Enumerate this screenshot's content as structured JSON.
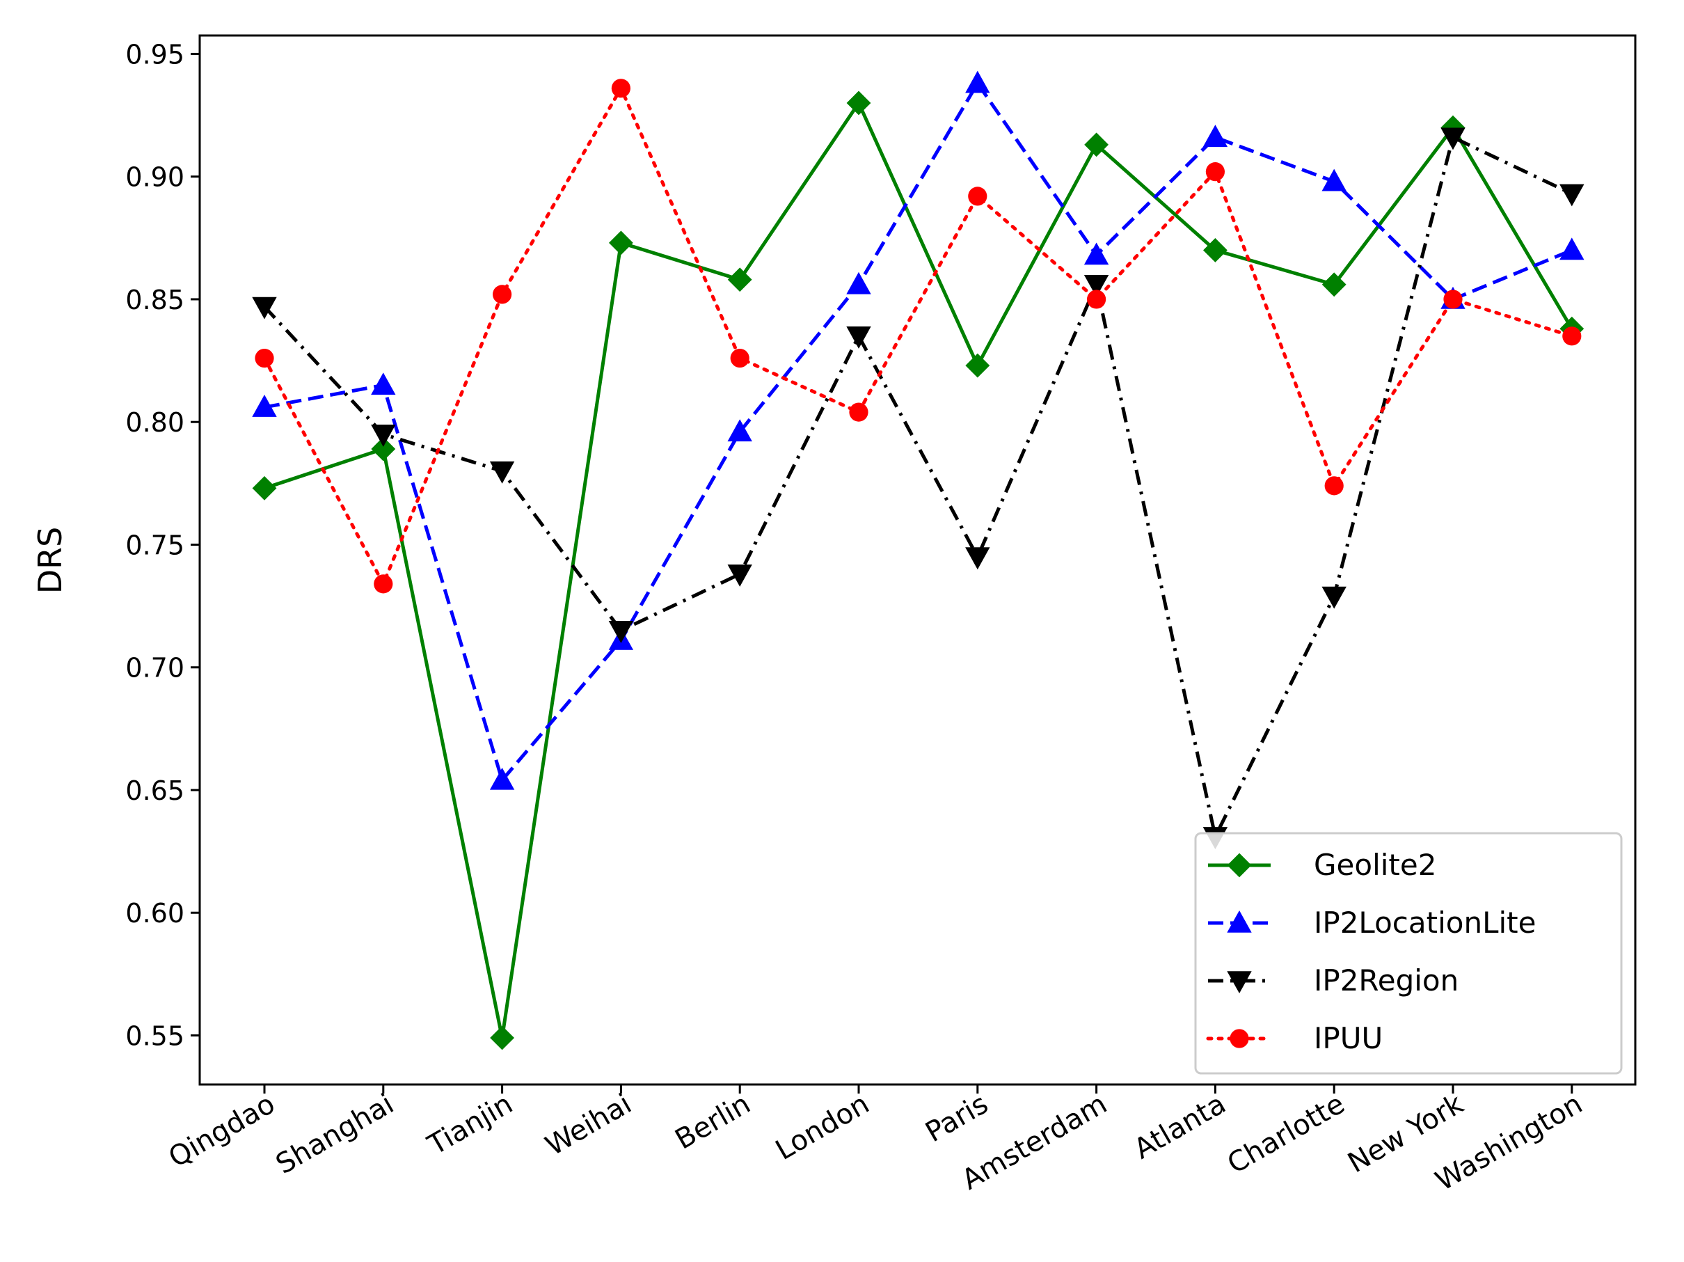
{
  "chart_data": {
    "type": "line",
    "title": "",
    "xlabel": "",
    "ylabel": "DRS",
    "ylim": [
      0.53,
      0.9575
    ],
    "yticks": [
      0.55,
      0.6,
      0.65,
      0.7,
      0.75,
      0.8,
      0.85,
      0.9,
      0.95
    ],
    "ytick_labels": [
      "0.55",
      "0.60",
      "0.65",
      "0.70",
      "0.75",
      "0.80",
      "0.85",
      "0.90",
      "0.95"
    ],
    "categories": [
      "Qingdao",
      "Shanghai",
      "Tianjin",
      "Weihai",
      "Berlin",
      "London",
      "Paris",
      "Amsterdam",
      "Atlanta",
      "Charlotte",
      "New York",
      "Washington"
    ],
    "legend_position": "lower-right",
    "grid": false,
    "series": [
      {
        "name": "Geolite2",
        "color": "#008000",
        "linestyle": "solid",
        "marker": "diamond",
        "values": [
          0.773,
          0.789,
          0.549,
          0.873,
          0.858,
          0.93,
          0.823,
          0.913,
          0.87,
          0.856,
          0.92,
          0.838
        ]
      },
      {
        "name": "IP2LocationLite",
        "color": "#0000ff",
        "linestyle": "dashed",
        "marker": "triangle-up",
        "values": [
          0.806,
          0.815,
          0.654,
          0.711,
          0.796,
          0.856,
          0.938,
          0.868,
          0.916,
          0.898,
          0.85,
          0.87
        ]
      },
      {
        "name": "IP2Region",
        "color": "#000000",
        "linestyle": "dashdot",
        "marker": "triangle-down",
        "values": [
          0.847,
          0.795,
          0.78,
          0.715,
          0.738,
          0.835,
          0.745,
          0.856,
          0.631,
          0.729,
          0.916,
          0.893
        ]
      },
      {
        "name": "IPUU",
        "color": "#ff0000",
        "linestyle": "dotted",
        "marker": "circle",
        "values": [
          0.826,
          0.734,
          0.852,
          0.936,
          0.826,
          0.804,
          0.892,
          0.85,
          0.902,
          0.774,
          0.85,
          0.835
        ]
      }
    ]
  }
}
